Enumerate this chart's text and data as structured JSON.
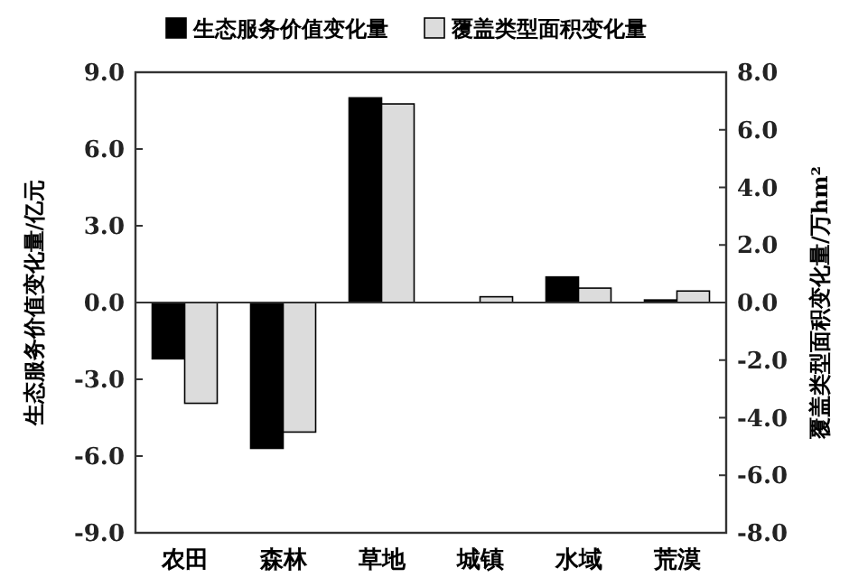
{
  "chart_data": {
    "type": "bar",
    "categories": [
      "农田",
      "森林",
      "草地",
      "城镇",
      "水域",
      "荒漠"
    ],
    "series": [
      {
        "name": "生态服务价值变化量",
        "color": "#000000",
        "values": [
          -2.2,
          -5.7,
          8.0,
          0,
          1.0,
          0.1
        ]
      },
      {
        "name": "覆盖类型面积变化量",
        "color": "#dcdcdc",
        "axis": "y2",
        "values": [
          -3.5,
          -4.5,
          6.9,
          0.2,
          0.5,
          0.4
        ]
      }
    ],
    "ylabel": "生态服务价值变化量/亿元",
    "y2label": "覆盖类型面积变化量/万hm²",
    "ylim": [
      -9,
      9
    ],
    "yticks": [
      {
        "value": -9,
        "label": "-9.0"
      },
      {
        "value": -6,
        "label": "-6.0"
      },
      {
        "value": -3,
        "label": "-3.0"
      },
      {
        "value": 0,
        "label": "0.0"
      },
      {
        "value": 3,
        "label": "3.0"
      },
      {
        "value": 6,
        "label": "6.0"
      },
      {
        "value": 9,
        "label": "9.0"
      }
    ],
    "y2lim": [
      -8,
      8
    ],
    "y2ticks": [
      {
        "value": -8,
        "label": "-8.0"
      },
      {
        "value": -6,
        "label": "-6.0"
      },
      {
        "value": -4,
        "label": "-4.0"
      },
      {
        "value": -2,
        "label": "-2.0"
      },
      {
        "value": 0,
        "label": "0.0"
      },
      {
        "value": 2,
        "label": "2.0"
      },
      {
        "value": 4,
        "label": "4.0"
      },
      {
        "value": 6,
        "label": "6.0"
      },
      {
        "value": 8,
        "label": "8.0"
      }
    ],
    "legend": "top"
  }
}
